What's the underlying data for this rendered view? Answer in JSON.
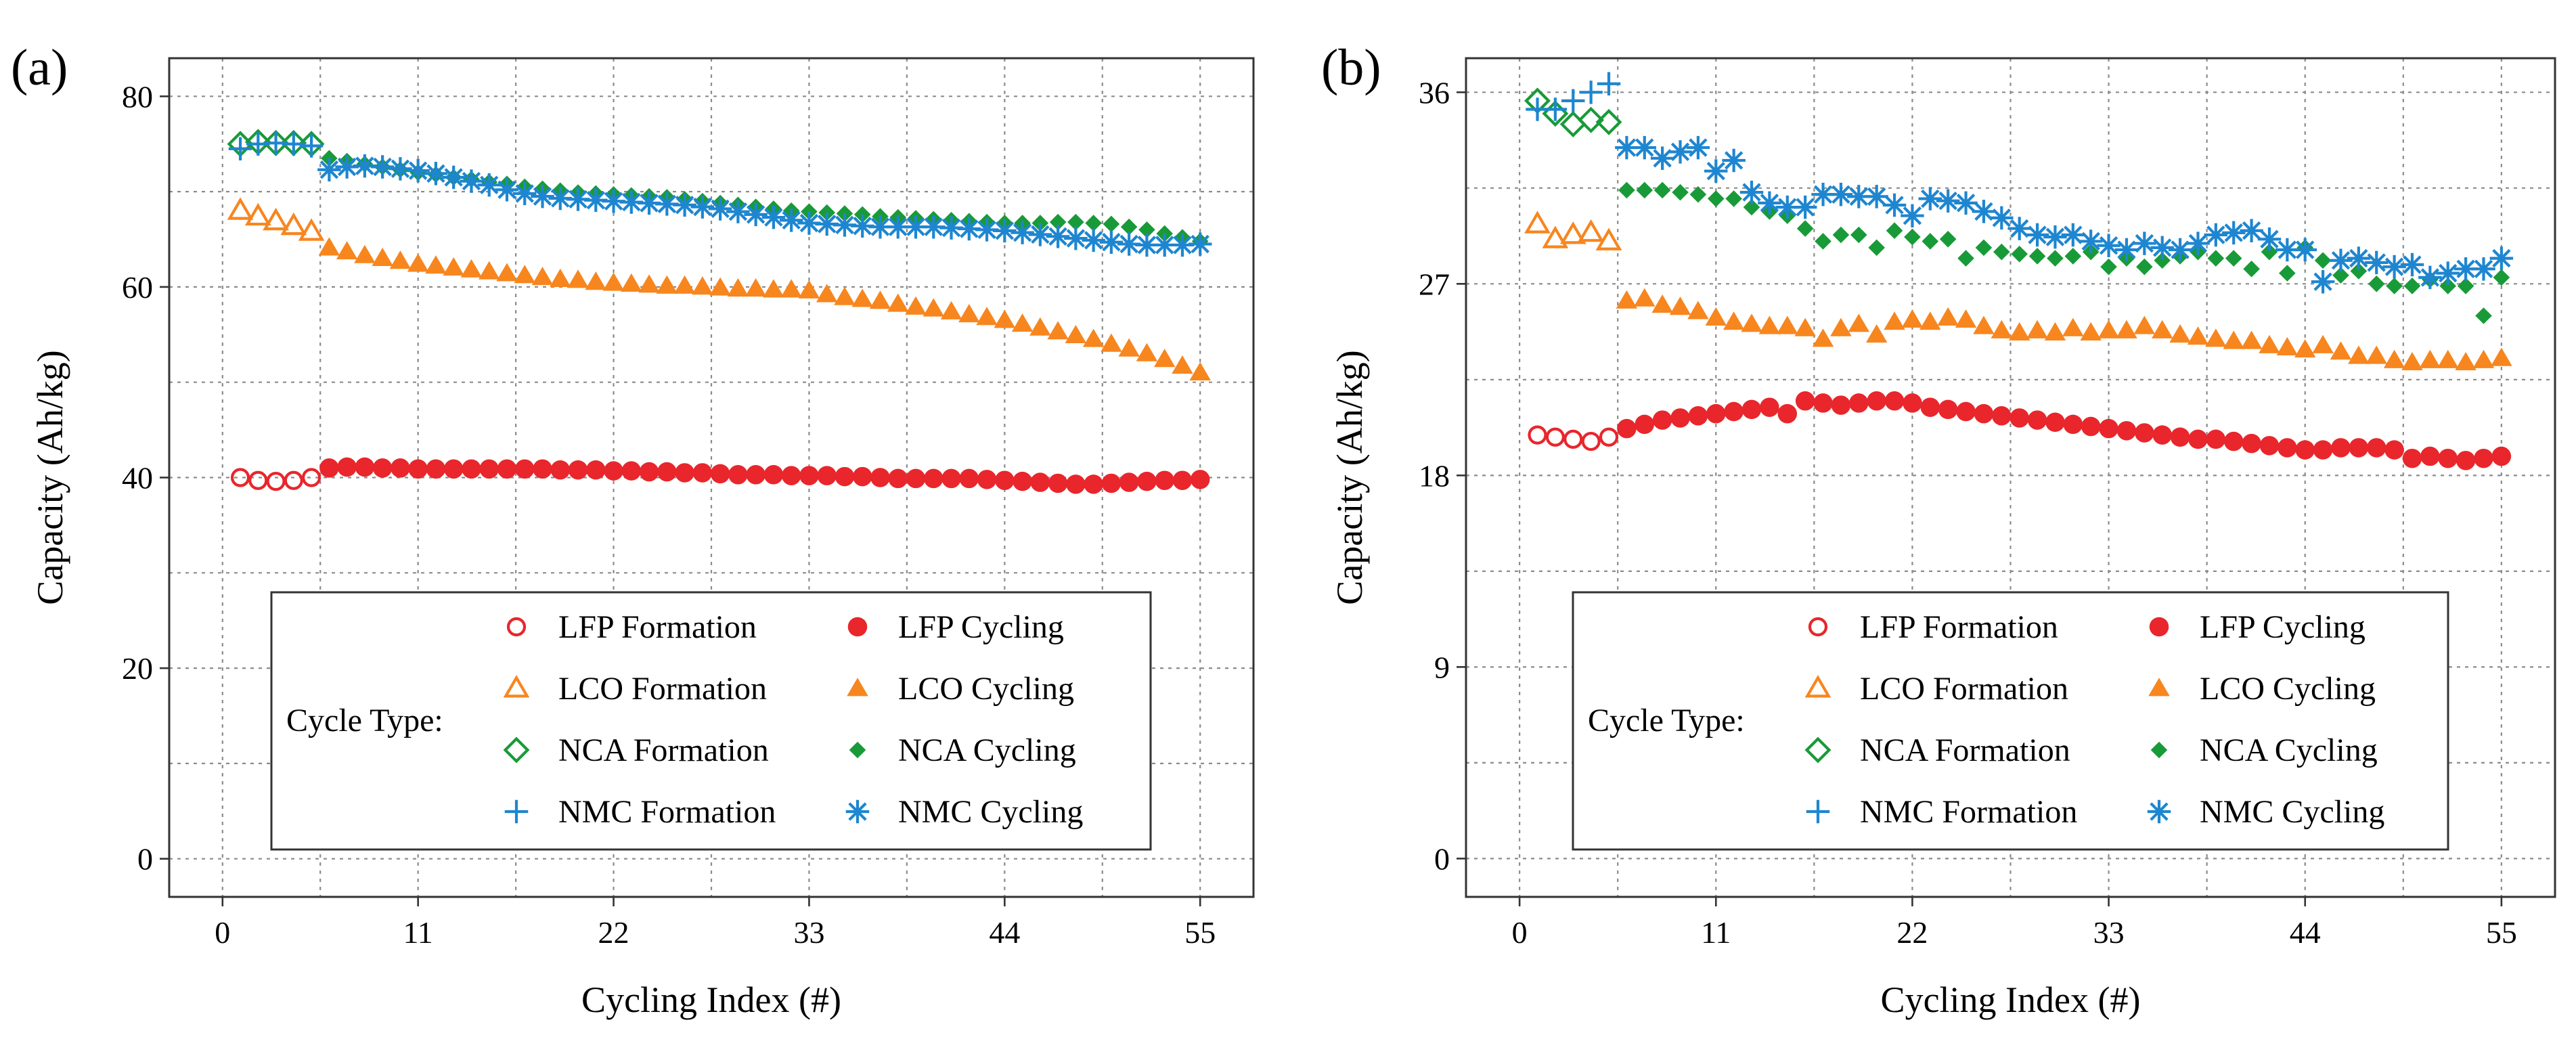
{
  "figure": {
    "legend_title": "Cycle Type:",
    "legend_labels": {
      "LFP_formation": "LFP Formation",
      "LFP_cycling": "LFP Cycling",
      "LCO_formation": "LCO Formation",
      "LCO_cycling": "LCO Cycling",
      "NCA_formation": "NCA Formation",
      "NCA_cycling": "NCA Cycling",
      "NMC_formation": "NMC Formation",
      "NMC_cycling": "NMC Cycling"
    },
    "colors": {
      "LFP": "#e8262c",
      "LCO": "#f7861f",
      "NCA": "#199a38",
      "NMC": "#1e86d0"
    }
  },
  "chart_data": [
    {
      "panel_label": "(a)",
      "type": "scatter",
      "xlabel": "Cycling Index (#)",
      "ylabel": "Capacity (Ah/kg)",
      "xlim": [
        -3,
        58
      ],
      "ylim": [
        -4,
        84
      ],
      "xticks": [
        0,
        11,
        22,
        33,
        44,
        55
      ],
      "yticks": [
        0,
        20,
        40,
        60,
        80
      ],
      "grid": true,
      "legend_position": "bottom-right",
      "series": [
        {
          "name": "LFP Formation",
          "chemistry": "LFP",
          "phase": "formation",
          "x": [
            1,
            2,
            3,
            4,
            5
          ],
          "y": [
            40.0,
            39.7,
            39.6,
            39.7,
            40.0
          ]
        },
        {
          "name": "LFP Cycling",
          "chemistry": "LFP",
          "phase": "cycling",
          "x": [
            6,
            7,
            8,
            9,
            10,
            11,
            12,
            13,
            14,
            15,
            16,
            17,
            18,
            19,
            20,
            21,
            22,
            23,
            24,
            25,
            26,
            27,
            28,
            29,
            30,
            31,
            32,
            33,
            34,
            35,
            36,
            37,
            38,
            39,
            40,
            41,
            42,
            43,
            44,
            45,
            46,
            47,
            48,
            49,
            50,
            51,
            52,
            53,
            54,
            55
          ],
          "y": [
            41.0,
            41.1,
            41.1,
            41.0,
            41.0,
            40.9,
            40.9,
            40.9,
            40.9,
            40.9,
            40.9,
            40.9,
            40.9,
            40.8,
            40.8,
            40.8,
            40.7,
            40.7,
            40.6,
            40.6,
            40.5,
            40.5,
            40.4,
            40.3,
            40.3,
            40.3,
            40.2,
            40.2,
            40.2,
            40.1,
            40.1,
            40.0,
            39.9,
            39.9,
            39.9,
            39.9,
            39.9,
            39.8,
            39.7,
            39.6,
            39.5,
            39.4,
            39.3,
            39.3,
            39.4,
            39.5,
            39.6,
            39.7,
            39.7,
            39.8
          ]
        },
        {
          "name": "LCO Formation",
          "chemistry": "LCO",
          "phase": "formation",
          "x": [
            1,
            2,
            3,
            4,
            5
          ],
          "y": [
            68.0,
            67.4,
            66.9,
            66.4,
            65.8
          ]
        },
        {
          "name": "LCO Cycling",
          "chemistry": "LCO",
          "phase": "cycling",
          "x": [
            6,
            7,
            8,
            9,
            10,
            11,
            12,
            13,
            14,
            15,
            16,
            17,
            18,
            19,
            20,
            21,
            22,
            23,
            24,
            25,
            26,
            27,
            28,
            29,
            30,
            31,
            32,
            33,
            34,
            35,
            36,
            37,
            38,
            39,
            40,
            41,
            42,
            43,
            44,
            45,
            46,
            47,
            48,
            49,
            50,
            51,
            52,
            53,
            54,
            55
          ],
          "y": [
            64.1,
            63.7,
            63.3,
            63.0,
            62.7,
            62.4,
            62.2,
            62.0,
            61.8,
            61.6,
            61.4,
            61.2,
            61.0,
            60.8,
            60.7,
            60.5,
            60.4,
            60.3,
            60.2,
            60.1,
            60.1,
            60.0,
            59.9,
            59.8,
            59.8,
            59.7,
            59.7,
            59.6,
            59.2,
            58.9,
            58.7,
            58.5,
            58.2,
            57.9,
            57.7,
            57.4,
            57.1,
            56.8,
            56.5,
            56.1,
            55.7,
            55.3,
            54.9,
            54.5,
            54.0,
            53.5,
            53.0,
            52.4,
            51.7,
            51.0
          ]
        },
        {
          "name": "NCA Formation",
          "chemistry": "NCA",
          "phase": "formation",
          "x": [
            1,
            2,
            3,
            4,
            5
          ],
          "y": [
            75.0,
            75.2,
            75.1,
            75.1,
            75.0
          ]
        },
        {
          "name": "NCA Cycling",
          "chemistry": "NCA",
          "phase": "cycling",
          "x": [
            6,
            7,
            8,
            9,
            10,
            11,
            12,
            13,
            14,
            15,
            16,
            17,
            18,
            19,
            20,
            21,
            22,
            23,
            24,
            25,
            26,
            27,
            28,
            29,
            30,
            31,
            32,
            33,
            34,
            35,
            36,
            37,
            38,
            39,
            40,
            41,
            42,
            43,
            44,
            45,
            46,
            47,
            48,
            49,
            50,
            51,
            52,
            53,
            54,
            55
          ],
          "y": [
            73.5,
            73.2,
            72.9,
            72.6,
            72.3,
            72.0,
            71.8,
            71.5,
            71.3,
            71.0,
            70.8,
            70.5,
            70.3,
            70.1,
            69.9,
            69.8,
            69.7,
            69.6,
            69.5,
            69.4,
            69.2,
            69.0,
            68.8,
            68.6,
            68.4,
            68.2,
            68.0,
            67.9,
            67.8,
            67.7,
            67.6,
            67.4,
            67.3,
            67.2,
            67.1,
            67.0,
            66.9,
            66.8,
            66.7,
            66.7,
            66.7,
            66.8,
            66.8,
            66.7,
            66.6,
            66.3,
            66.0,
            65.6,
            65.2,
            64.8
          ]
        },
        {
          "name": "NMC Formation",
          "chemistry": "NMC",
          "phase": "formation",
          "x": [
            1,
            2,
            3,
            4,
            5
          ],
          "y": [
            74.5,
            75.0,
            75.1,
            75.0,
            74.8
          ]
        },
        {
          "name": "NMC Cycling",
          "chemistry": "NMC",
          "phase": "cycling",
          "x": [
            6,
            7,
            8,
            9,
            10,
            11,
            12,
            13,
            14,
            15,
            16,
            17,
            18,
            19,
            20,
            21,
            22,
            23,
            24,
            25,
            26,
            27,
            28,
            29,
            30,
            31,
            32,
            33,
            34,
            35,
            36,
            37,
            38,
            39,
            40,
            41,
            42,
            43,
            44,
            45,
            46,
            47,
            48,
            49,
            50,
            51,
            52,
            53,
            54,
            55
          ],
          "y": [
            72.3,
            72.6,
            72.7,
            72.6,
            72.4,
            72.2,
            71.9,
            71.5,
            71.1,
            70.7,
            70.2,
            69.8,
            69.5,
            69.3,
            69.2,
            69.1,
            69.0,
            68.9,
            68.8,
            68.7,
            68.6,
            68.4,
            68.2,
            67.9,
            67.6,
            67.3,
            67.0,
            66.7,
            66.6,
            66.5,
            66.4,
            66.3,
            66.3,
            66.3,
            66.3,
            66.2,
            66.1,
            66.0,
            65.9,
            65.7,
            65.5,
            65.3,
            65.1,
            64.9,
            64.7,
            64.5,
            64.4,
            64.4,
            64.4,
            64.5
          ]
        }
      ]
    },
    {
      "panel_label": "(b)",
      "type": "scatter",
      "xlabel": "Cycling Index (#)",
      "ylabel": "Capacity (Ah/kg)",
      "xlim": [
        -3,
        58
      ],
      "ylim": [
        -1.8,
        37.6
      ],
      "xticks": [
        0,
        11,
        22,
        33,
        44,
        55
      ],
      "yticks": [
        0,
        9,
        18,
        27,
        36
      ],
      "grid": true,
      "legend_position": "bottom-right",
      "series": [
        {
          "name": "LFP Formation",
          "chemistry": "LFP",
          "phase": "formation",
          "x": [
            1,
            2,
            3,
            4,
            5
          ],
          "y": [
            19.9,
            19.8,
            19.7,
            19.6,
            19.8
          ]
        },
        {
          "name": "LFP Cycling",
          "chemistry": "LFP",
          "phase": "cycling",
          "x": [
            6,
            7,
            8,
            9,
            10,
            11,
            12,
            13,
            14,
            15,
            16,
            17,
            18,
            19,
            20,
            21,
            22,
            23,
            24,
            25,
            26,
            27,
            28,
            29,
            30,
            31,
            32,
            33,
            34,
            35,
            36,
            37,
            38,
            39,
            40,
            41,
            42,
            43,
            44,
            45,
            46,
            47,
            48,
            49,
            50,
            51,
            52,
            53,
            54,
            55
          ],
          "y": [
            20.2,
            20.4,
            20.6,
            20.7,
            20.8,
            20.9,
            21.0,
            21.1,
            21.2,
            20.9,
            21.5,
            21.4,
            21.3,
            21.4,
            21.5,
            21.5,
            21.4,
            21.2,
            21.1,
            21.0,
            20.9,
            20.8,
            20.7,
            20.6,
            20.5,
            20.4,
            20.3,
            20.2,
            20.1,
            20.0,
            19.9,
            19.8,
            19.7,
            19.7,
            19.6,
            19.5,
            19.4,
            19.3,
            19.2,
            19.2,
            19.3,
            19.3,
            19.3,
            19.2,
            18.8,
            18.9,
            18.8,
            18.7,
            18.8,
            18.9
          ]
        },
        {
          "name": "LCO Formation",
          "chemistry": "LCO",
          "phase": "formation",
          "x": [
            1,
            2,
            3,
            4,
            5
          ],
          "y": [
            29.8,
            29.1,
            29.3,
            29.4,
            29.0
          ]
        },
        {
          "name": "LCO Cycling",
          "chemistry": "LCO",
          "phase": "cycling",
          "x": [
            6,
            7,
            8,
            9,
            10,
            11,
            12,
            13,
            14,
            15,
            16,
            17,
            18,
            19,
            20,
            21,
            22,
            23,
            24,
            25,
            26,
            27,
            28,
            29,
            30,
            31,
            32,
            33,
            34,
            35,
            36,
            37,
            38,
            39,
            40,
            41,
            42,
            43,
            44,
            45,
            46,
            47,
            48,
            49,
            50,
            51,
            52,
            53,
            54,
            55
          ],
          "y": [
            26.2,
            26.3,
            26.0,
            25.9,
            25.7,
            25.4,
            25.2,
            25.1,
            25.0,
            25.0,
            24.9,
            24.4,
            24.9,
            25.1,
            24.6,
            25.2,
            25.3,
            25.2,
            25.4,
            25.3,
            25.0,
            24.8,
            24.7,
            24.8,
            24.7,
            24.9,
            24.7,
            24.8,
            24.8,
            25.0,
            24.8,
            24.6,
            24.5,
            24.4,
            24.3,
            24.3,
            24.1,
            24.0,
            23.9,
            24.1,
            23.8,
            23.6,
            23.6,
            23.4,
            23.3,
            23.4,
            23.4,
            23.3,
            23.4,
            23.5
          ]
        },
        {
          "name": "NCA Formation",
          "chemistry": "NCA",
          "phase": "formation",
          "x": [
            1,
            2,
            3,
            4,
            5
          ],
          "y": [
            35.6,
            35.0,
            34.5,
            34.7,
            34.6
          ]
        },
        {
          "name": "NCA Cycling",
          "chemistry": "NCA",
          "phase": "cycling",
          "x": [
            6,
            7,
            8,
            9,
            10,
            11,
            12,
            13,
            14,
            15,
            16,
            17,
            18,
            19,
            20,
            21,
            22,
            23,
            24,
            25,
            26,
            27,
            28,
            29,
            30,
            31,
            32,
            33,
            34,
            35,
            36,
            37,
            38,
            39,
            40,
            41,
            42,
            43,
            44,
            45,
            46,
            47,
            48,
            49,
            50,
            51,
            52,
            53,
            54,
            55
          ],
          "y": [
            31.4,
            31.4,
            31.4,
            31.3,
            31.2,
            31.0,
            31.0,
            30.6,
            30.4,
            30.2,
            29.6,
            29.0,
            29.3,
            29.3,
            28.7,
            29.5,
            29.2,
            29.0,
            29.1,
            28.2,
            28.7,
            28.5,
            28.4,
            28.3,
            28.2,
            28.3,
            28.5,
            27.8,
            28.2,
            27.8,
            28.1,
            28.3,
            28.5,
            28.2,
            28.2,
            27.7,
            28.5,
            27.5,
            28.7,
            28.1,
            27.4,
            27.6,
            27.0,
            26.9,
            26.9,
            27.2,
            26.9,
            26.9,
            25.5,
            27.3
          ]
        },
        {
          "name": "NMC Formation",
          "chemistry": "NMC",
          "phase": "formation",
          "x": [
            1,
            2,
            3,
            4,
            5
          ],
          "y": [
            35.2,
            35.2,
            35.6,
            36.0,
            36.4
          ]
        },
        {
          "name": "NMC Cycling",
          "chemistry": "NMC",
          "phase": "cycling",
          "x": [
            6,
            7,
            8,
            9,
            10,
            11,
            12,
            13,
            14,
            15,
            16,
            17,
            18,
            19,
            20,
            21,
            22,
            23,
            24,
            25,
            26,
            27,
            28,
            29,
            30,
            31,
            32,
            33,
            34,
            35,
            36,
            37,
            38,
            39,
            40,
            41,
            42,
            43,
            44,
            45,
            46,
            47,
            48,
            49,
            50,
            51,
            52,
            53,
            54,
            55
          ],
          "y": [
            33.4,
            33.4,
            32.9,
            33.2,
            33.4,
            32.3,
            32.8,
            31.3,
            30.8,
            30.6,
            30.6,
            31.2,
            31.2,
            31.1,
            31.1,
            30.7,
            30.2,
            31.0,
            30.9,
            30.8,
            30.4,
            30.1,
            29.6,
            29.3,
            29.2,
            29.3,
            29.0,
            28.8,
            28.6,
            28.9,
            28.7,
            28.6,
            28.9,
            29.3,
            29.4,
            29.5,
            29.1,
            28.6,
            28.6,
            27.1,
            28.1,
            28.2,
            28.0,
            27.8,
            27.9,
            27.3,
            27.5,
            27.7,
            27.7,
            28.2
          ]
        }
      ]
    }
  ]
}
